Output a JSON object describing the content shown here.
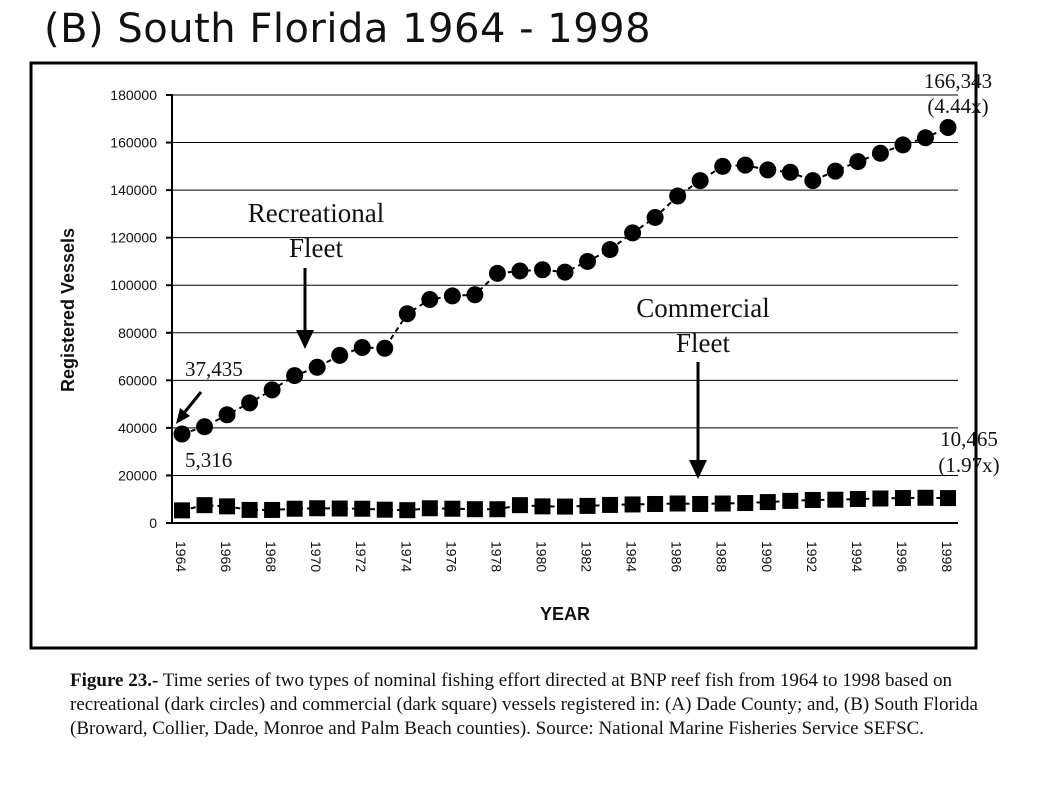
{
  "header": {
    "title": "(B)  South Florida 1964 - 1998"
  },
  "chart_data": {
    "type": "line",
    "xlabel": "YEAR",
    "ylabel": "Registered Vessels",
    "xlim": [
      1964,
      1998
    ],
    "ylim": [
      0,
      180000
    ],
    "y_ticks": [
      "0",
      "20000",
      "40000",
      "60000",
      "80000",
      "100000",
      "120000",
      "140000",
      "160000",
      "180000"
    ],
    "x_ticks": [
      "1964",
      "1966",
      "1968",
      "1970",
      "1972",
      "1974",
      "1976",
      "1978",
      "1980",
      "1982",
      "1984",
      "1986",
      "1988",
      "1990",
      "1992",
      "1994",
      "1996",
      "1998"
    ],
    "grid": "horizontal",
    "x": [
      1964,
      1965,
      1966,
      1967,
      1968,
      1969,
      1970,
      1971,
      1972,
      1973,
      1974,
      1975,
      1976,
      1977,
      1978,
      1979,
      1980,
      1981,
      1982,
      1983,
      1984,
      1985,
      1986,
      1987,
      1988,
      1989,
      1990,
      1991,
      1992,
      1993,
      1994,
      1995,
      1996,
      1997,
      1998
    ],
    "series": [
      {
        "marker": "circle",
        "values": [
          37435,
          40500,
          45500,
          50500,
          56000,
          62000,
          65500,
          70500,
          73800,
          73500,
          88000,
          94000,
          95500,
          96000,
          105000,
          106000,
          106500,
          105500,
          110000,
          115000,
          122000,
          128500,
          137500,
          144000,
          150000,
          150500,
          148500,
          147500,
          144000,
          148000,
          152000,
          155500,
          159000,
          162000,
          166343
        ]
      },
      {
        "marker": "square",
        "values": [
          5316,
          7500,
          7000,
          5500,
          5500,
          6000,
          6200,
          6100,
          6000,
          5600,
          5400,
          6200,
          6000,
          5800,
          5800,
          7500,
          7000,
          6900,
          7200,
          7600,
          7800,
          8000,
          8200,
          8000,
          8200,
          8400,
          8800,
          9300,
          9700,
          9800,
          10100,
          10300,
          10500,
          10600,
          10465
        ]
      }
    ],
    "annotations": {
      "rec_start": "37,435",
      "com_start": "5,316",
      "rec_end": "166,343",
      "rec_end_ratio": "(4.44x)",
      "com_end": "10,465",
      "com_end_ratio": "(1.97x)",
      "rec_label_1": "Recreational",
      "rec_label_2": "Fleet",
      "com_label_1": "Commercial",
      "com_label_2": "Fleet"
    }
  },
  "caption": {
    "label": "Figure 23.-",
    "text": " Time series of two types of nominal fishing effort directed at BNP reef fish from 1964 to 1998 based on recreational (dark circles) and commercial (dark square) vessels registered in: (A) Dade County; and, (B) South Florida (Broward, Collier, Dade, Monroe and Palm Beach counties).  Source: National Marine Fisheries Service SEFSC."
  }
}
